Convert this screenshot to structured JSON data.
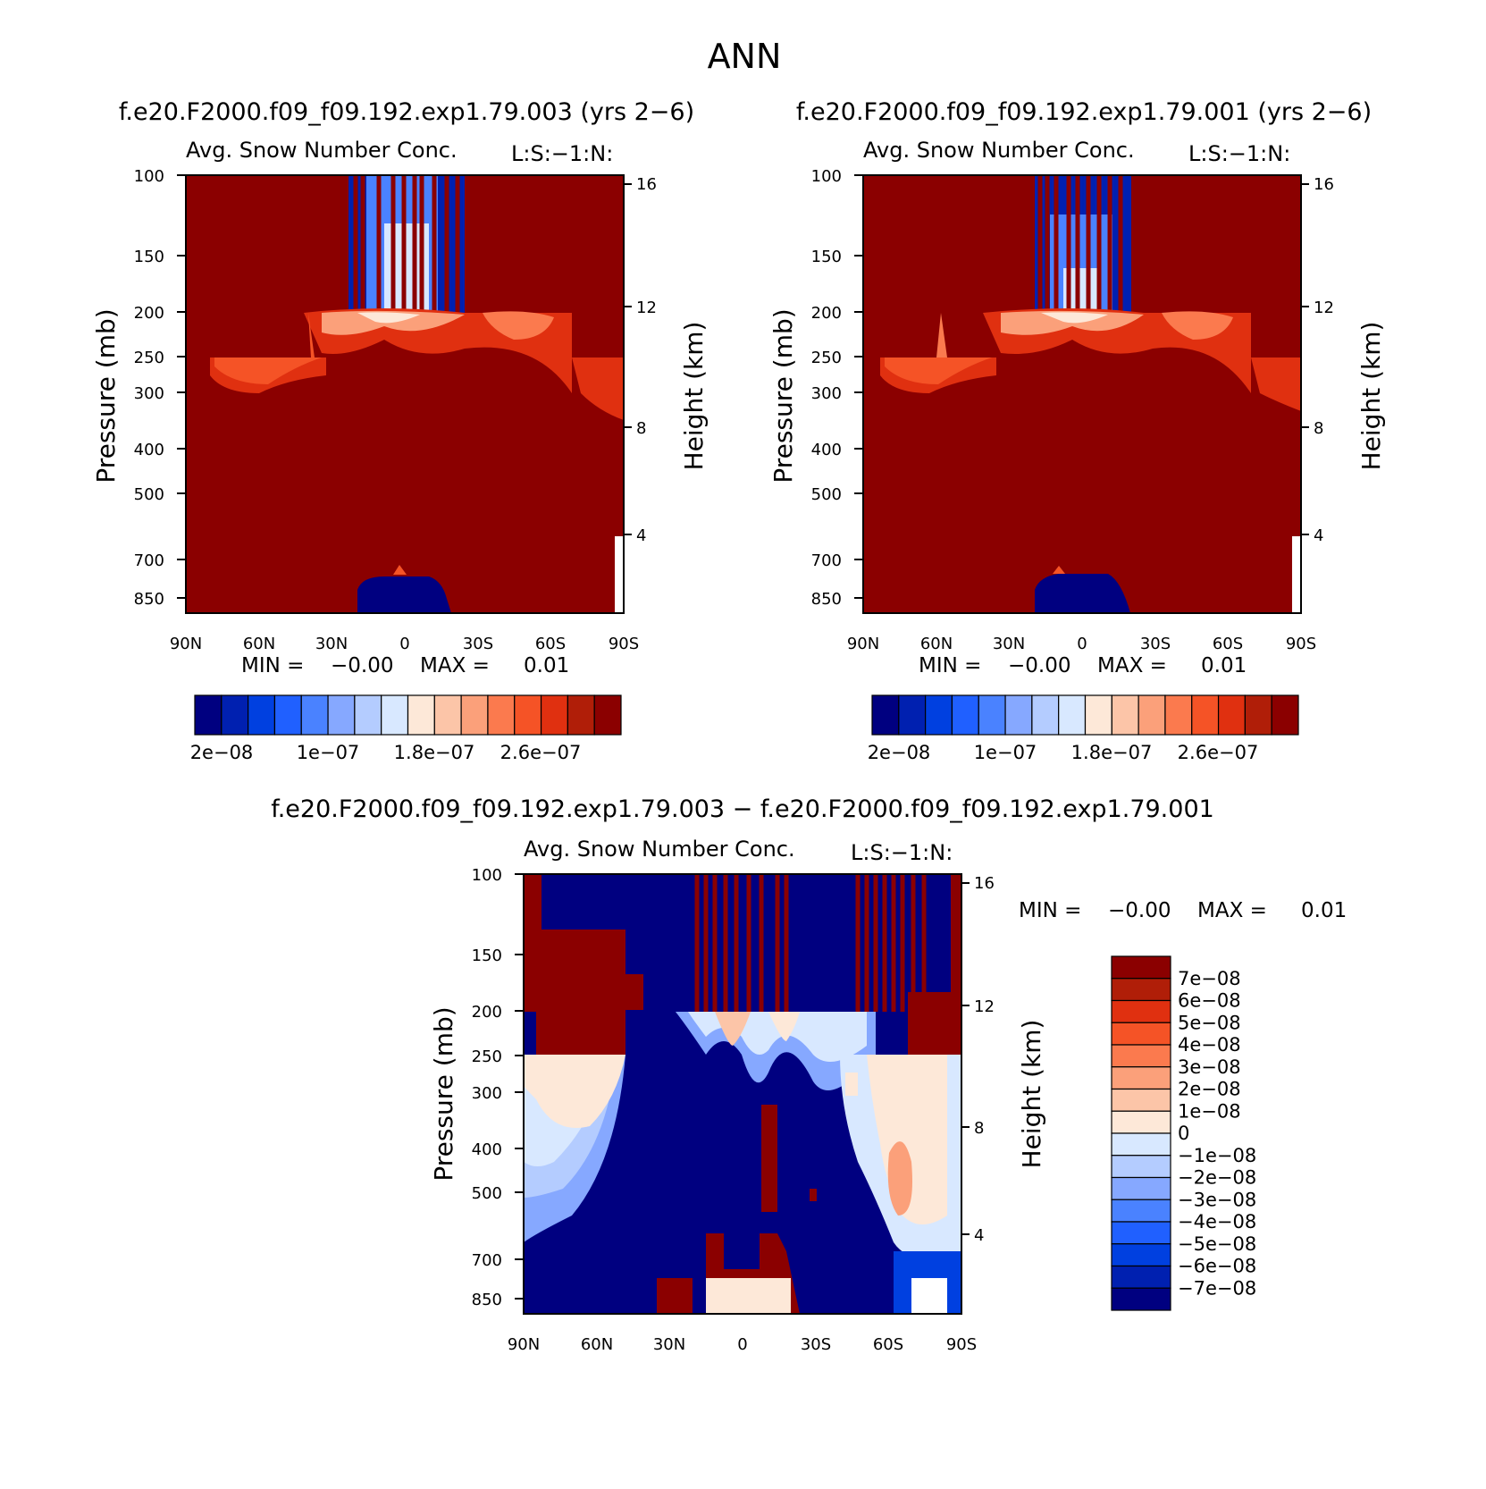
{
  "page_title": "ANN",
  "panels": [
    {
      "case_title": "f.e20.F2000.f09_f09.192.exp1.79.003 (yrs 2−6)",
      "var_title": "Avg. Snow Number Conc.",
      "units": "L:S:−1:N:",
      "ylabel": "Pressure (mb)",
      "ylabel2": "Height (km)",
      "stats": {
        "min_label": "MIN =",
        "min_value": "−0.00",
        "max_label": "MAX =",
        "max_value": "0.01"
      },
      "colorbar_labels": [
        "2e−08",
        "1e−07",
        "1.8e−07",
        "2.6e−07"
      ]
    },
    {
      "case_title": "f.e20.F2000.f09_f09.192.exp1.79.001 (yrs 2−6)",
      "var_title": "Avg. Snow Number Conc.",
      "units": "L:S:−1:N:",
      "ylabel": "Pressure (mb)",
      "ylabel2": "Height (km)",
      "stats": {
        "min_label": "MIN =",
        "min_value": "−0.00",
        "max_label": "MAX =",
        "max_value": "0.01"
      },
      "colorbar_labels": [
        "2e−08",
        "1e−07",
        "1.8e−07",
        "2.6e−07"
      ]
    },
    {
      "case_title": "f.e20.F2000.f09_f09.192.exp1.79.003 − f.e20.F2000.f09_f09.192.exp1.79.001",
      "var_title": "Avg. Snow Number Conc.",
      "units": "L:S:−1:N:",
      "ylabel": "Pressure (mb)",
      "ylabel2": "Height (km)",
      "stats": {
        "min_label": "MIN =",
        "min_value": "−0.00",
        "max_label": "MAX =",
        "max_value": "0.01"
      },
      "colorbar_labels": [
        "7e−08",
        "6e−08",
        "5e−08",
        "4e−08",
        "3e−08",
        "2e−08",
        "1e−08",
        "0",
        "−1e−08",
        "−2e−08",
        "−3e−08",
        "−4e−08",
        "−5e−08",
        "−6e−08",
        "−7e−08"
      ]
    }
  ],
  "chart_data": [
    {
      "type": "heatmap",
      "title": "Avg. Snow Number Conc.",
      "x_ticks": [
        "90N",
        "60N",
        "30N",
        "0",
        "30S",
        "60S",
        "90S"
      ],
      "y_ticks": [
        100,
        150,
        200,
        250,
        300,
        400,
        500,
        700,
        850
      ],
      "y2_ticks": [
        16,
        12,
        8,
        4
      ],
      "ylabel": "Pressure (mb)",
      "y2label": "Height (km)",
      "levels": [
        "2e-08",
        "1e-07",
        "1.8e-07",
        "2.6e-07"
      ],
      "min": -0.0,
      "max": 0.01
    },
    {
      "type": "heatmap",
      "title": "Avg. Snow Number Conc.",
      "x_ticks": [
        "90N",
        "60N",
        "30N",
        "0",
        "30S",
        "60S",
        "90S"
      ],
      "y_ticks": [
        100,
        150,
        200,
        250,
        300,
        400,
        500,
        700,
        850
      ],
      "y2_ticks": [
        16,
        12,
        8,
        4
      ],
      "ylabel": "Pressure (mb)",
      "y2label": "Height (km)",
      "levels": [
        "2e-08",
        "1e-07",
        "1.8e-07",
        "2.6e-07"
      ],
      "min": -0.0,
      "max": 0.01
    },
    {
      "type": "heatmap",
      "title": "Avg. Snow Number Conc.",
      "x_ticks": [
        "90N",
        "60N",
        "30N",
        "0",
        "30S",
        "60S",
        "90S"
      ],
      "y_ticks": [
        100,
        150,
        200,
        250,
        300,
        400,
        500,
        700,
        850
      ],
      "y2_ticks": [
        16,
        12,
        8,
        4
      ],
      "ylabel": "Pressure (mb)",
      "y2label": "Height (km)",
      "levels": [
        "7e-08",
        "6e-08",
        "5e-08",
        "4e-08",
        "3e-08",
        "2e-08",
        "1e-08",
        "0",
        "-1e-08",
        "-2e-08",
        "-3e-08",
        "-4e-08",
        "-5e-08",
        "-6e-08",
        "-7e-08"
      ],
      "min": -0.0,
      "max": 0.01
    }
  ],
  "colors": {
    "abs_scale": [
      "#000080",
      "#0020b0",
      "#0040e0",
      "#2060ff",
      "#4a82ff",
      "#86a8ff",
      "#b4ccff",
      "#d8e8ff",
      "#fde8d8",
      "#fcc5a8",
      "#fba07a",
      "#fb7a4e",
      "#f55326",
      "#e03010",
      "#b01e08",
      "#8b0000"
    ],
    "diff_scale": [
      "#8b0000",
      "#b01e08",
      "#e03010",
      "#f55326",
      "#fb7a4e",
      "#fba07a",
      "#fcc5a8",
      "#fde8d8",
      "#d8e8ff",
      "#b4ccff",
      "#86a8ff",
      "#4a82ff",
      "#2060ff",
      "#0040e0",
      "#0020b0",
      "#000080"
    ]
  }
}
